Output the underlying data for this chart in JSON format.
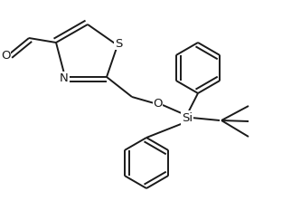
{
  "background_color": "#ffffff",
  "line_color": "#1a1a1a",
  "line_width": 1.4,
  "font_size": 9.5,
  "figsize": [
    3.12,
    2.22
  ],
  "dpi": 100,
  "xlim": [
    0,
    3.12
  ],
  "ylim": [
    0,
    2.22
  ]
}
